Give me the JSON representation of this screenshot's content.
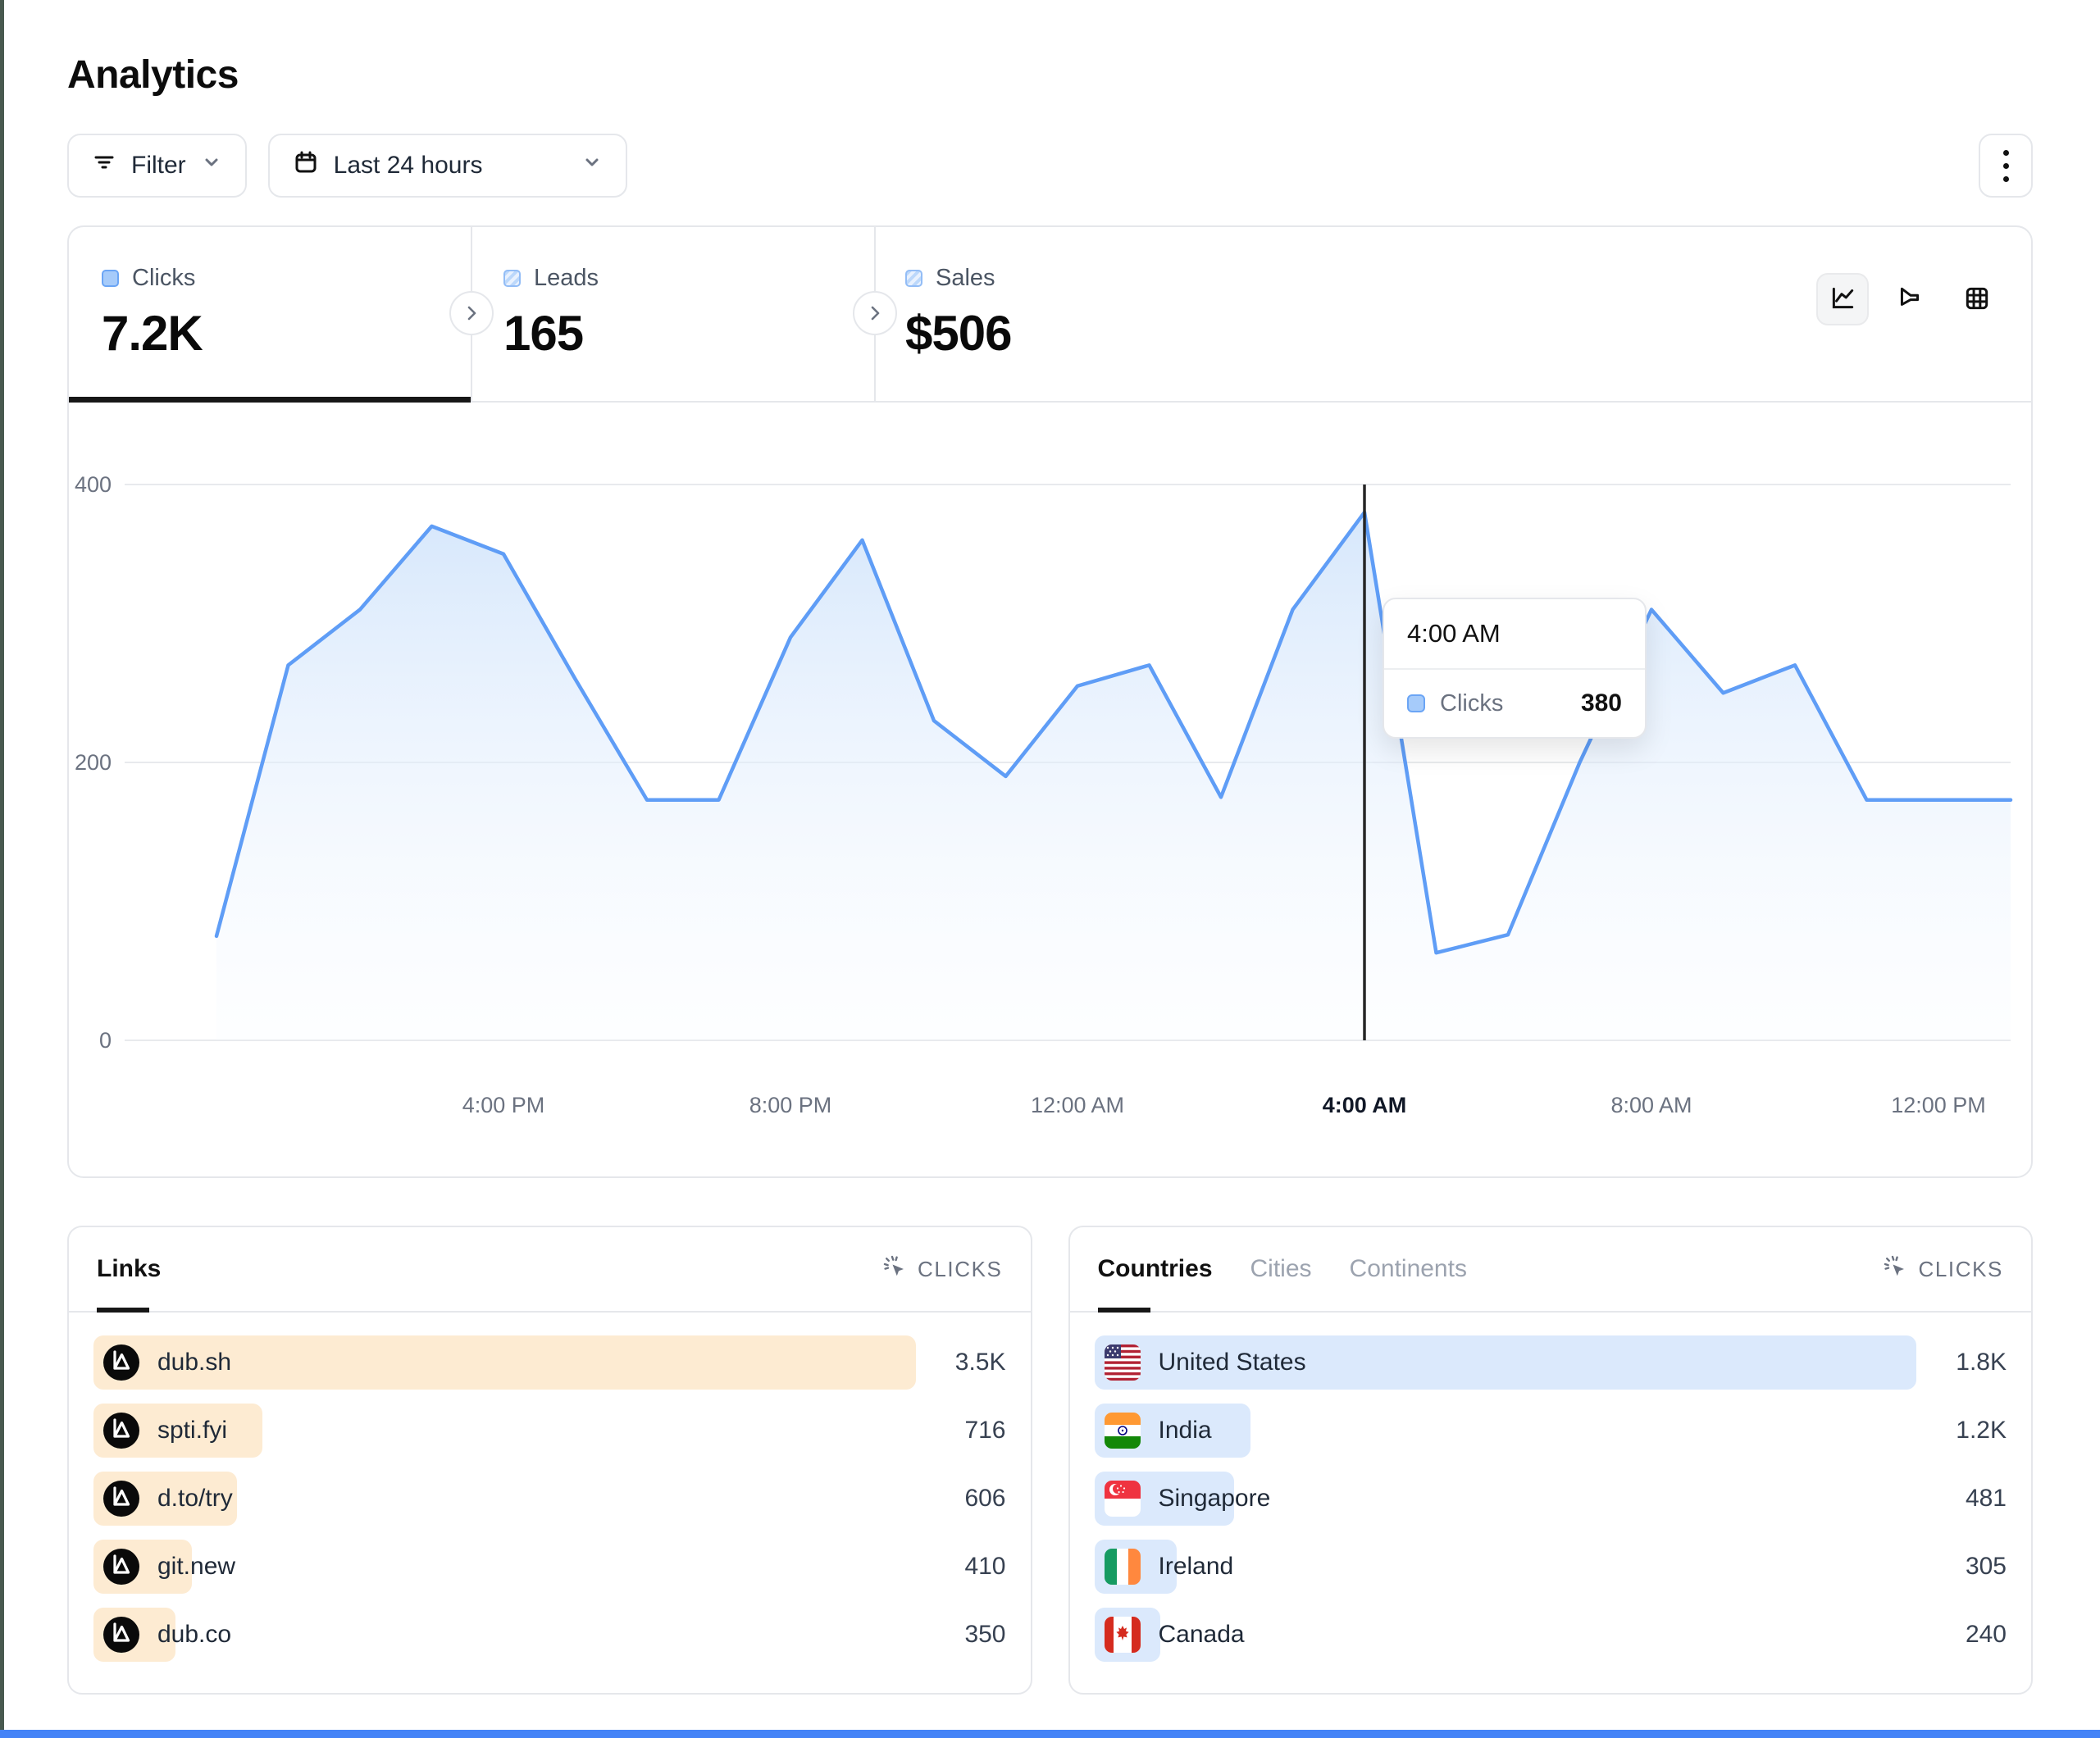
{
  "page": {
    "title": "Analytics"
  },
  "toolbar": {
    "filter_label": "Filter",
    "date_range_label": "Last 24 hours"
  },
  "stats": [
    {
      "id": "clicks",
      "label": "Clicks",
      "value": "7.2K",
      "active": true
    },
    {
      "id": "leads",
      "label": "Leads",
      "value": "165",
      "active": false
    },
    {
      "id": "sales",
      "label": "Sales",
      "value": "$506",
      "active": false
    }
  ],
  "chart_data": {
    "type": "area",
    "series_name": "Clicks",
    "ylim": [
      0,
      400
    ],
    "yticks": [
      0,
      200,
      400
    ],
    "grid": "horizontal",
    "points": [
      {
        "t": "12:00 PM",
        "v": 75
      },
      {
        "t": "1:00 PM",
        "v": 270
      },
      {
        "t": "2:00 PM",
        "v": 310
      },
      {
        "t": "3:00 PM",
        "v": 370
      },
      {
        "t": "4:00 PM",
        "v": 350
      },
      {
        "t": "5:00 PM",
        "v": 260
      },
      {
        "t": "6:00 PM",
        "v": 173
      },
      {
        "t": "7:00 PM",
        "v": 173
      },
      {
        "t": "8:00 PM",
        "v": 290
      },
      {
        "t": "9:00 PM",
        "v": 360
      },
      {
        "t": "10:00 PM",
        "v": 230
      },
      {
        "t": "11:00 PM",
        "v": 190
      },
      {
        "t": "12:00 AM",
        "v": 255
      },
      {
        "t": "1:00 AM",
        "v": 270
      },
      {
        "t": "2:00 AM",
        "v": 175
      },
      {
        "t": "3:00 AM",
        "v": 310
      },
      {
        "t": "4:00 AM",
        "v": 380
      },
      {
        "t": "5:00 AM",
        "v": 63
      },
      {
        "t": "6:00 AM",
        "v": 76
      },
      {
        "t": "7:00 AM",
        "v": 200
      },
      {
        "t": "8:00 AM",
        "v": 310
      },
      {
        "t": "9:00 AM",
        "v": 250
      },
      {
        "t": "10:00 AM",
        "v": 270
      },
      {
        "t": "11:00 AM",
        "v": 173
      },
      {
        "t": "12:00 PM",
        "v": 173
      }
    ],
    "tick_labels": [
      "4:00 PM",
      "8:00 PM",
      "12:00 AM",
      "4:00 AM",
      "8:00 AM",
      "12:00 PM"
    ],
    "tick_indices": [
      4,
      8,
      12,
      16,
      20,
      24
    ],
    "crosshair_index": 16,
    "tooltip": {
      "time": "4:00 AM",
      "label": "Clicks",
      "value": "380"
    }
  },
  "links_panel": {
    "tab_label": "Links",
    "metric_label": "CLICKS",
    "rows": [
      {
        "label": "dub.sh",
        "value": "3.5K",
        "pct": 100
      },
      {
        "label": "spti.fyi",
        "value": "716",
        "pct": 20.5
      },
      {
        "label": "d.to/try",
        "value": "606",
        "pct": 17.5
      },
      {
        "label": "git.new",
        "value": "410",
        "pct": 12
      },
      {
        "label": "dub.co",
        "value": "350",
        "pct": 10
      }
    ]
  },
  "countries_panel": {
    "tabs": [
      "Countries",
      "Cities",
      "Continents"
    ],
    "active_tab": "Countries",
    "metric_label": "CLICKS",
    "rows": [
      {
        "label": "United States",
        "value": "1.8K",
        "pct": 100,
        "flag": "us"
      },
      {
        "label": "India",
        "value": "1.2K",
        "pct": 19,
        "flag": "in"
      },
      {
        "label": "Singapore",
        "value": "481",
        "pct": 17,
        "flag": "sg"
      },
      {
        "label": "Ireland",
        "value": "305",
        "pct": 10,
        "flag": "ie"
      },
      {
        "label": "Canada",
        "value": "240",
        "pct": 8,
        "flag": "ca"
      }
    ]
  },
  "colors": {
    "line_blue": "#5f9df6",
    "area_top": "#cfe3fb",
    "grid_gray": "#e8eaed",
    "crosshair": "#262626",
    "links_bar": "#fdebd2",
    "countries_bar": "#dbe9fc",
    "active_dark": "#171717",
    "page_edge_left": "#48594f",
    "page_edge_bottom": "#4483f7"
  }
}
